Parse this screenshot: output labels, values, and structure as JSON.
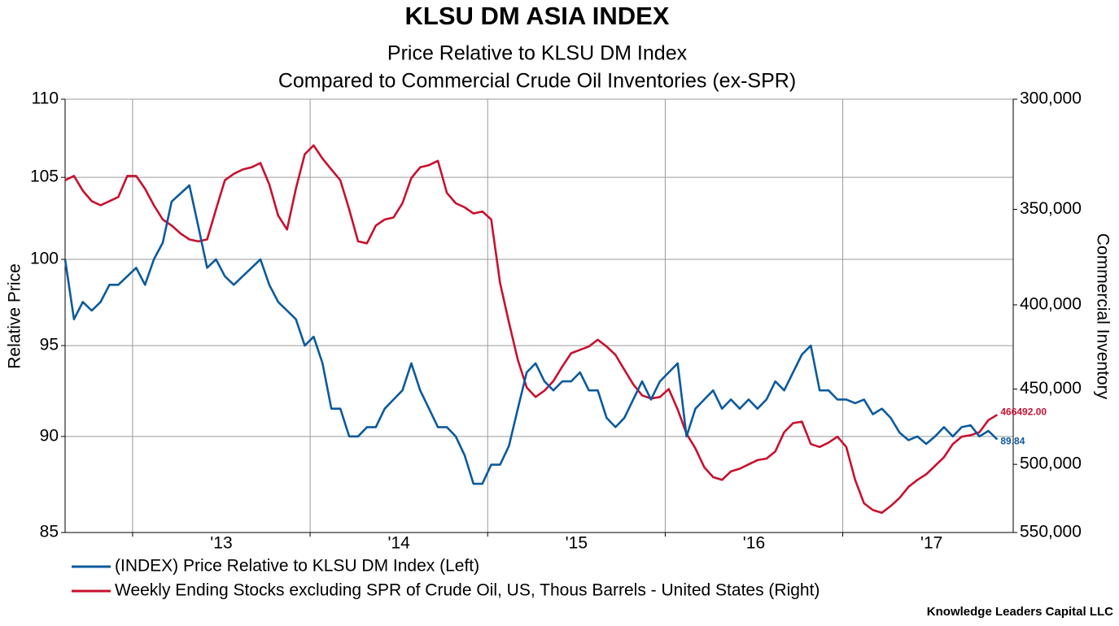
{
  "chart_data": {
    "type": "line",
    "title": "KLSU DM ASIA INDEX",
    "subtitle": [
      "Price Relative to KLSU DM Index",
      "Compared to Commercial Crude Oil Inventories (ex-SPR)"
    ],
    "ylabel": "Relative Price",
    "y2label": "Commercial Inventory",
    "source": "Knowledge Leaders Capital LLC",
    "xlim": [
      2012.62,
      2017.96
    ],
    "xticks": [
      {
        "value": 2013.5,
        "label": "'13"
      },
      {
        "value": 2014.5,
        "label": "'14"
      },
      {
        "value": 2015.5,
        "label": "'15"
      },
      {
        "value": 2016.5,
        "label": "'16"
      },
      {
        "value": 2017.5,
        "label": "'17"
      }
    ],
    "x_gridlines": [
      2013,
      2014,
      2015,
      2016,
      2017
    ],
    "ylim": [
      85,
      110
    ],
    "yticks": [
      85,
      90,
      95,
      100,
      105,
      110
    ],
    "ylog": true,
    "y2lim": [
      550000,
      300000
    ],
    "y2ticks": [
      {
        "value": 300000,
        "label": "300,000"
      },
      {
        "value": 350000,
        "label": "350,000"
      },
      {
        "value": 400000,
        "label": "400,000"
      },
      {
        "value": 450000,
        "label": "450,000"
      },
      {
        "value": 500000,
        "label": "500,000"
      },
      {
        "value": 550000,
        "label": "550,000"
      }
    ],
    "y2log": true,
    "grid": true,
    "legend": "bottom",
    "x": [
      2012.62,
      2012.67,
      2012.72,
      2012.77,
      2012.82,
      2012.87,
      2012.92,
      2012.97,
      2013.02,
      2013.07,
      2013.12,
      2013.17,
      2013.22,
      2013.27,
      2013.32,
      2013.37,
      2013.42,
      2013.47,
      2013.52,
      2013.57,
      2013.62,
      2013.67,
      2013.72,
      2013.77,
      2013.82,
      2013.87,
      2013.92,
      2013.97,
      2014.02,
      2014.07,
      2014.12,
      2014.17,
      2014.22,
      2014.27,
      2014.32,
      2014.37,
      2014.42,
      2014.47,
      2014.52,
      2014.57,
      2014.62,
      2014.67,
      2014.72,
      2014.77,
      2014.82,
      2014.87,
      2014.92,
      2014.97,
      2015.02,
      2015.07,
      2015.12,
      2015.17,
      2015.22,
      2015.27,
      2015.32,
      2015.37,
      2015.42,
      2015.47,
      2015.52,
      2015.57,
      2015.62,
      2015.67,
      2015.72,
      2015.77,
      2015.82,
      2015.87,
      2015.92,
      2015.97,
      2016.02,
      2016.07,
      2016.12,
      2016.17,
      2016.22,
      2016.27,
      2016.32,
      2016.37,
      2016.42,
      2016.47,
      2016.52,
      2016.57,
      2016.62,
      2016.67,
      2016.72,
      2016.77,
      2016.82,
      2016.87,
      2016.92,
      2016.97,
      2017.02,
      2017.07,
      2017.12,
      2017.17,
      2017.22,
      2017.27,
      2017.32,
      2017.37,
      2017.42,
      2017.47,
      2017.52,
      2017.57,
      2017.62,
      2017.67,
      2017.72,
      2017.77,
      2017.82,
      2017.87
    ],
    "series": [
      {
        "name": "(INDEX) Price Relative to KLSU DM Index  (Left)",
        "color": "#0b5a9e",
        "axis": "y",
        "end_label": "89.84",
        "values": [
          100,
          96.5,
          97.5,
          97,
          97.5,
          98.5,
          98.5,
          99,
          99.5,
          98.5,
          100,
          101,
          103.5,
          104,
          104.5,
          102,
          99.5,
          100,
          99,
          98.5,
          99,
          99.5,
          100,
          98.5,
          97.5,
          97,
          96.5,
          95,
          95.5,
          94,
          91.5,
          91.5,
          90,
          90,
          90.5,
          90.5,
          91.5,
          92,
          92.5,
          94,
          92.5,
          91.5,
          90.5,
          90.5,
          90,
          89,
          87.5,
          87.5,
          88.5,
          88.5,
          89.5,
          91.5,
          93.5,
          94,
          93,
          92.5,
          93,
          93,
          93.5,
          92.5,
          92.5,
          91,
          90.5,
          91,
          92,
          93,
          92,
          93,
          93.5,
          94,
          90,
          91.5,
          92,
          92.5,
          91.5,
          92,
          91.5,
          92,
          91.5,
          92,
          93,
          92.5,
          93.5,
          94.5,
          95,
          92.5,
          92.5,
          92,
          92,
          91.8,
          92,
          91.2,
          91.5,
          91,
          90.2,
          89.8,
          90,
          89.6,
          90,
          90.5,
          90,
          90.5,
          90.6,
          90,
          90.3,
          89.84
        ]
      },
      {
        "name": "Weekly Ending Stocks excluding SPR of Crude Oil, US, Thous Barrels - United States  (Right)",
        "color": "#c8102e",
        "axis": "y2",
        "end_label": "466492.00",
        "values": [
          336000,
          334000,
          341000,
          346000,
          348000,
          346000,
          344000,
          334000,
          334000,
          340000,
          348000,
          355000,
          358000,
          362000,
          365000,
          366000,
          365000,
          350000,
          336000,
          333000,
          331000,
          330000,
          328000,
          338000,
          353000,
          360000,
          340000,
          324000,
          320000,
          326000,
          331000,
          336000,
          350000,
          366000,
          367000,
          358000,
          355000,
          354000,
          347000,
          335000,
          330000,
          329000,
          327000,
          342000,
          347000,
          349000,
          352000,
          351000,
          355000,
          388000,
          410000,
          432000,
          449000,
          455000,
          451000,
          445000,
          436000,
          428000,
          426000,
          424000,
          420000,
          424000,
          429000,
          438000,
          447000,
          454000,
          456000,
          455000,
          450000,
          463000,
          479000,
          489000,
          502000,
          509000,
          511000,
          505000,
          503000,
          500000,
          497000,
          496000,
          491000,
          478000,
          472000,
          471000,
          486000,
          488000,
          485000,
          481000,
          488000,
          511000,
          528000,
          533000,
          535000,
          530000,
          524000,
          516000,
          511000,
          507000,
          501000,
          495000,
          486000,
          481000,
          480000,
          478000,
          470000,
          466492
        ]
      }
    ]
  }
}
